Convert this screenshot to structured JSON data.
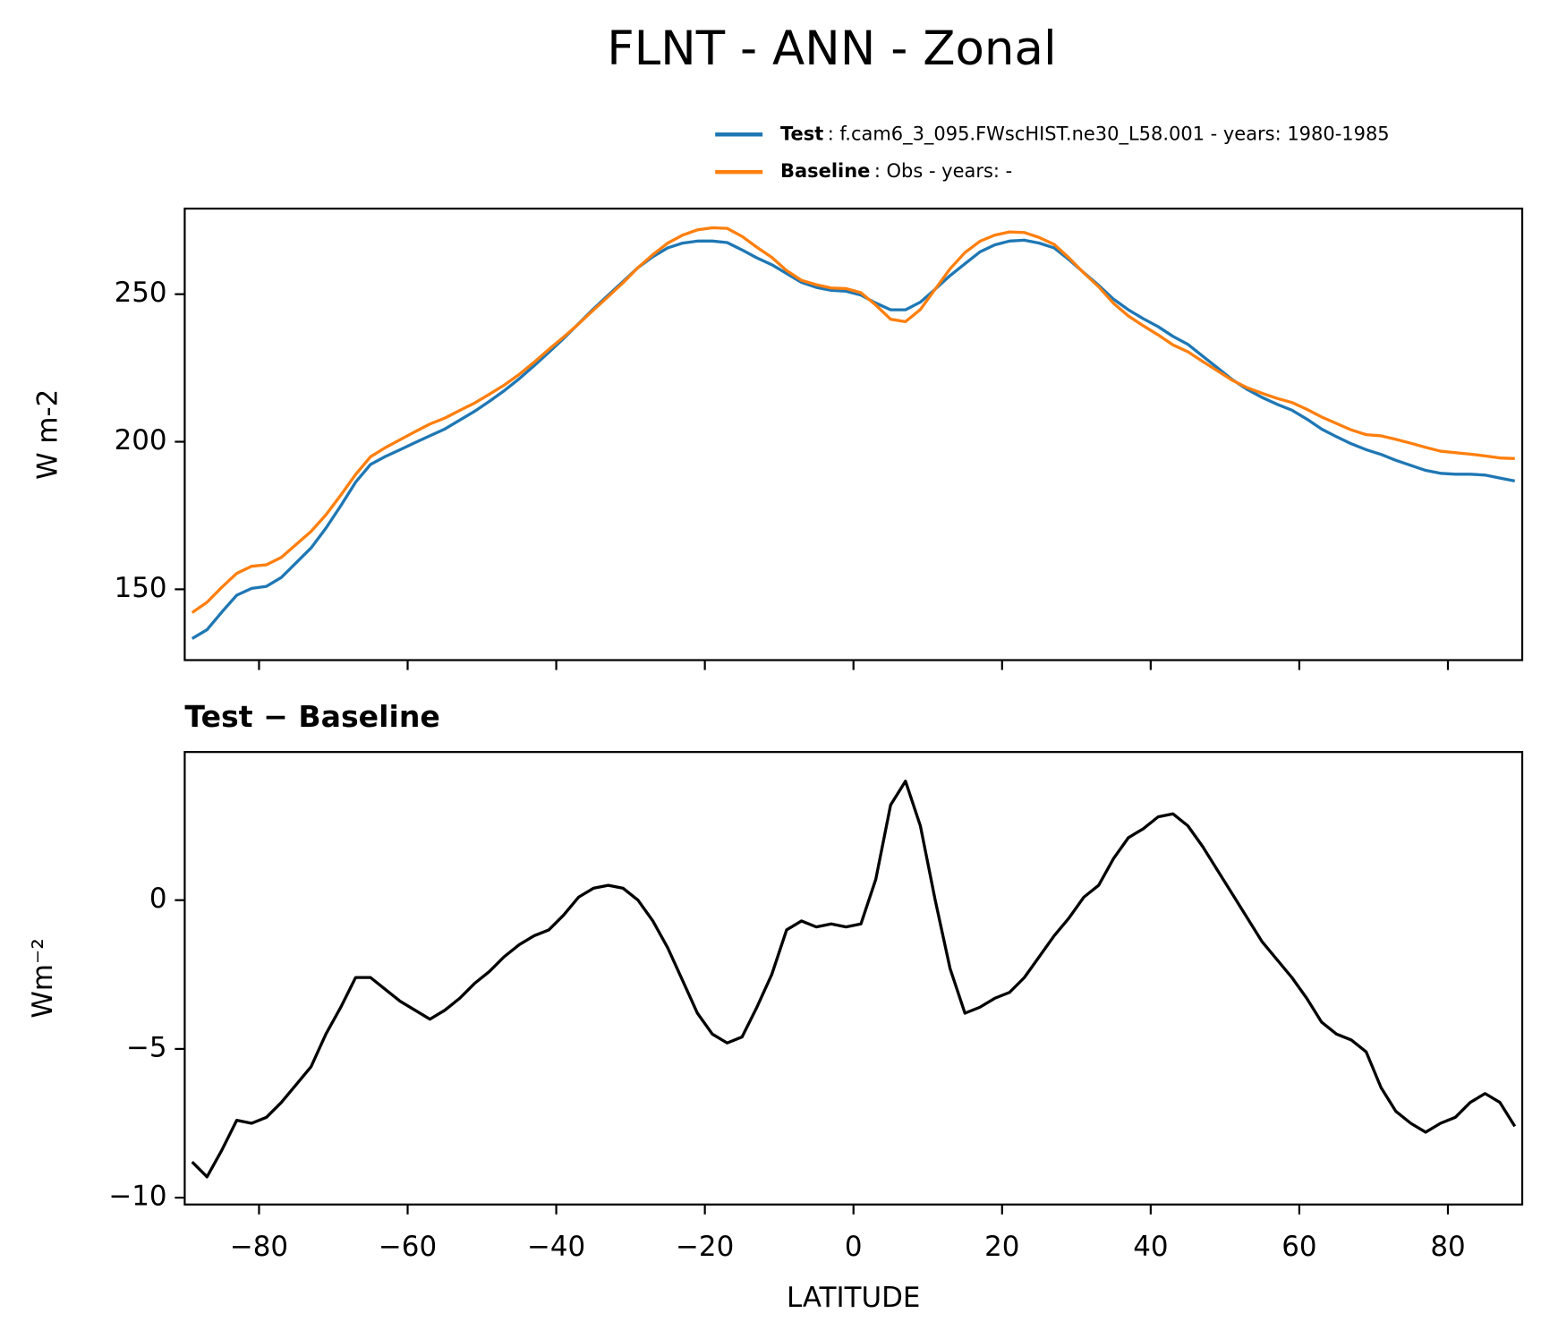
{
  "title": "FLNT - ANN - Zonal",
  "chart_data": [
    {
      "type": "line",
      "ylabel": "W m-2",
      "x": [
        -89,
        -87,
        -85,
        -83,
        -81,
        -79,
        -77,
        -75,
        -73,
        -71,
        -69,
        -67,
        -65,
        -63,
        -61,
        -59,
        -57,
        -55,
        -53,
        -51,
        -49,
        -47,
        -45,
        -43,
        -41,
        -39,
        -37,
        -35,
        -33,
        -31,
        -29,
        -27,
        -25,
        -23,
        -21,
        -19,
        -17,
        -15,
        -13,
        -11,
        -9,
        -7,
        -5,
        -3,
        -1,
        1,
        3,
        5,
        7,
        9,
        11,
        13,
        15,
        17,
        19,
        21,
        23,
        25,
        27,
        29,
        31,
        33,
        35,
        37,
        39,
        41,
        43,
        45,
        47,
        49,
        51,
        53,
        55,
        57,
        59,
        61,
        63,
        65,
        67,
        69,
        71,
        73,
        75,
        77,
        79,
        81,
        83,
        85,
        87,
        89
      ],
      "series": [
        {
          "name": "Test",
          "description": ": f.cam6_3_095.FWscHIST.ne30_L58.001 - years: 1980-1985",
          "color": "#1f77b4",
          "values": [
            133.3,
            136.3,
            142.3,
            148,
            150.3,
            151,
            154,
            159,
            164,
            170.7,
            178.3,
            186.3,
            192.3,
            195,
            197.3,
            199.7,
            202,
            204.3,
            207.3,
            210.3,
            213.7,
            217.3,
            221.3,
            225.7,
            230.3,
            235,
            240,
            245,
            249.7,
            254.3,
            259,
            262.7,
            265.7,
            267.3,
            268,
            268,
            267.5,
            265,
            262.3,
            260,
            257,
            254,
            252.3,
            251.3,
            251,
            249.7,
            247,
            244.7,
            244.7,
            247.3,
            251.7,
            256.3,
            260.3,
            264.3,
            266.7,
            268,
            268.3,
            267.3,
            265.7,
            261.7,
            257.3,
            253,
            248.3,
            244.7,
            241.7,
            239,
            235.7,
            233,
            229,
            225,
            221,
            217.7,
            215,
            212.7,
            210.7,
            207.7,
            204.3,
            201.7,
            199.3,
            197.3,
            195.7,
            193.7,
            192,
            190.3,
            189.3,
            189,
            189,
            188.7,
            187.7,
            186.7
          ]
        },
        {
          "name": "Baseline",
          "description": ": Obs - years: -",
          "color": "#ff7f0e",
          "values": [
            142.1,
            145.6,
            150.7,
            155.4,
            157.8,
            158.3,
            160.8,
            165.2,
            169.6,
            175.2,
            181.9,
            188.9,
            194.9,
            198,
            200.7,
            203.4,
            206,
            208,
            210.6,
            213.1,
            216.1,
            219.2,
            222.8,
            226.9,
            231.3,
            235.5,
            239.9,
            244.6,
            249.2,
            253.9,
            259,
            263.4,
            267.3,
            270,
            271.8,
            272.5,
            272.3,
            269.6,
            265.9,
            262.5,
            258,
            254.7,
            253.2,
            252.1,
            251.9,
            250.5,
            246.3,
            241.5,
            240.7,
            244.8,
            251.7,
            258.6,
            264.1,
            267.9,
            270,
            271.1,
            270.9,
            269.2,
            266.9,
            262.3,
            257.2,
            252.5,
            246.9,
            242.6,
            239.3,
            236.2,
            232.8,
            230.5,
            227.2,
            224,
            220.8,
            218.3,
            216.4,
            214.7,
            213.3,
            211,
            208.4,
            206.2,
            204,
            202.4,
            202,
            200.8,
            199.5,
            198.1,
            196.8,
            196.3,
            195.8,
            195.2,
            194.5,
            194.3
          ]
        }
      ],
      "xlim": [
        -90,
        90
      ],
      "xticks": [
        -80,
        -60,
        -40,
        -20,
        0,
        20,
        40,
        60,
        80
      ],
      "ylim": [
        126,
        279
      ],
      "yticks": [
        150,
        200,
        250
      ]
    },
    {
      "type": "line",
      "title": "Test − Baseline",
      "ylabel": "Wm⁻²",
      "xlabel": "LATITUDE",
      "x": [
        -89,
        -87,
        -85,
        -83,
        -81,
        -79,
        -77,
        -75,
        -73,
        -71,
        -69,
        -67,
        -65,
        -63,
        -61,
        -59,
        -57,
        -55,
        -53,
        -51,
        -49,
        -47,
        -45,
        -43,
        -41,
        -39,
        -37,
        -35,
        -33,
        -31,
        -29,
        -27,
        -25,
        -23,
        -21,
        -19,
        -17,
        -15,
        -13,
        -11,
        -9,
        -7,
        -5,
        -3,
        -1,
        1,
        3,
        5,
        7,
        9,
        11,
        13,
        15,
        17,
        19,
        21,
        23,
        25,
        27,
        29,
        31,
        33,
        35,
        37,
        39,
        41,
        43,
        45,
        47,
        49,
        51,
        53,
        55,
        57,
        59,
        61,
        63,
        65,
        67,
        69,
        71,
        73,
        75,
        77,
        79,
        81,
        83,
        85,
        87,
        89
      ],
      "series": [
        {
          "color": "#000000",
          "values": [
            -8.8,
            -9.3,
            -8.4,
            -7.4,
            -7.5,
            -7.3,
            -6.8,
            -6.2,
            -5.6,
            -4.5,
            -3.6,
            -2.6,
            -2.6,
            -3.0,
            -3.4,
            -3.7,
            -4.0,
            -3.7,
            -3.3,
            -2.8,
            -2.4,
            -1.9,
            -1.5,
            -1.2,
            -1.0,
            -0.5,
            0.1,
            0.4,
            0.5,
            0.4,
            0.0,
            -0.7,
            -1.6,
            -2.7,
            -3.8,
            -4.5,
            -4.8,
            -4.6,
            -3.6,
            -2.5,
            -1.0,
            -0.7,
            -0.9,
            -0.8,
            -0.9,
            -0.8,
            0.7,
            3.2,
            4.0,
            2.5,
            0.0,
            -2.3,
            -3.8,
            -3.6,
            -3.3,
            -3.1,
            -2.6,
            -1.9,
            -1.2,
            -0.6,
            0.1,
            0.5,
            1.4,
            2.1,
            2.4,
            2.8,
            2.9,
            2.5,
            1.8,
            1.0,
            0.2,
            -0.6,
            -1.4,
            -2.0,
            -2.6,
            -3.3,
            -4.1,
            -4.5,
            -4.7,
            -5.1,
            -6.3,
            -7.1,
            -7.5,
            -7.8,
            -7.5,
            -7.3,
            -6.8,
            -6.5,
            -6.8,
            -7.6
          ]
        }
      ],
      "xlim": [
        -90,
        90
      ],
      "xticks": [
        {
          "value": -80,
          "label": "−80"
        },
        {
          "value": -60,
          "label": "−60"
        },
        {
          "value": -40,
          "label": "−40"
        },
        {
          "value": -20,
          "label": "−20"
        },
        0,
        20,
        40,
        60,
        80
      ],
      "ylim": [
        -10.23,
        4.98
      ],
      "yticks": [
        {
          "value": -10,
          "label": "−10"
        },
        {
          "value": -5,
          "label": "−5"
        },
        0
      ]
    }
  ]
}
